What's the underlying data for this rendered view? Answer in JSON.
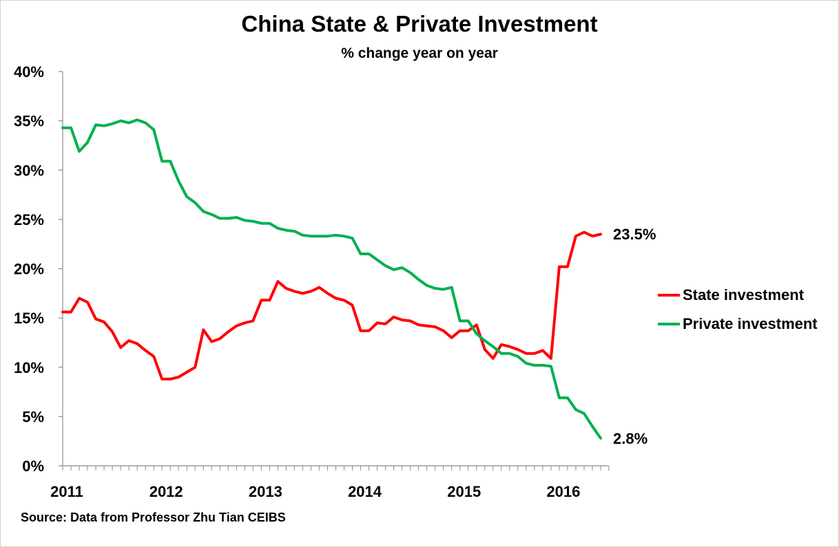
{
  "chart_data": {
    "type": "line",
    "title": "China State & Private Investment",
    "subtitle": "% change year on year",
    "source": "Source: Data from Professor Zhu Tian CEIBS",
    "ylim": [
      0,
      40
    ],
    "y_ticks": [
      "0%",
      "5%",
      "10%",
      "15%",
      "20%",
      "25%",
      "30%",
      "35%",
      "40%"
    ],
    "x_ticks": [
      "2011",
      "2012",
      "2013",
      "2014",
      "2015",
      "2016"
    ],
    "x_range": [
      2011,
      2016.5
    ],
    "legend_position": "right",
    "grid": false,
    "series": [
      {
        "name": "State investment",
        "color": "#ff0000",
        "end_label": "23.5%",
        "values": [
          15.6,
          15.6,
          17.0,
          16.6,
          14.9,
          14.6,
          13.6,
          12.0,
          12.7,
          12.4,
          11.7,
          11.1,
          8.8,
          8.8,
          9.0,
          9.5,
          10.0,
          13.8,
          12.6,
          12.9,
          13.6,
          14.2,
          14.5,
          14.7,
          16.8,
          16.8,
          18.7,
          18.0,
          17.7,
          17.5,
          17.7,
          18.1,
          17.5,
          17.0,
          16.8,
          16.3,
          13.7,
          13.7,
          14.5,
          14.4,
          15.1,
          14.8,
          14.7,
          14.3,
          14.2,
          14.1,
          13.7,
          13.0,
          13.7,
          13.7,
          14.3,
          11.8,
          10.9,
          12.3,
          12.1,
          11.8,
          11.4,
          11.4,
          11.7,
          10.9,
          20.2,
          20.2,
          23.3,
          23.7,
          23.3,
          23.5
        ]
      },
      {
        "name": "Private investment",
        "color": "#00b050",
        "end_label": "2.8%",
        "values": [
          34.3,
          34.3,
          31.9,
          32.8,
          34.6,
          34.5,
          34.7,
          35.0,
          34.8,
          35.1,
          34.8,
          34.1,
          30.9,
          30.9,
          28.9,
          27.3,
          26.7,
          25.8,
          25.5,
          25.1,
          25.1,
          25.2,
          24.9,
          24.8,
          24.6,
          24.6,
          24.1,
          23.9,
          23.8,
          23.4,
          23.3,
          23.3,
          23.3,
          23.4,
          23.3,
          23.1,
          21.5,
          21.5,
          20.9,
          20.3,
          19.9,
          20.1,
          19.6,
          18.9,
          18.3,
          18.0,
          17.9,
          18.1,
          14.7,
          14.7,
          13.4,
          12.7,
          12.1,
          11.4,
          11.4,
          11.1,
          10.4,
          10.2,
          10.2,
          10.1,
          6.9,
          6.9,
          5.7,
          5.3,
          4.0,
          2.8
        ]
      }
    ]
  }
}
